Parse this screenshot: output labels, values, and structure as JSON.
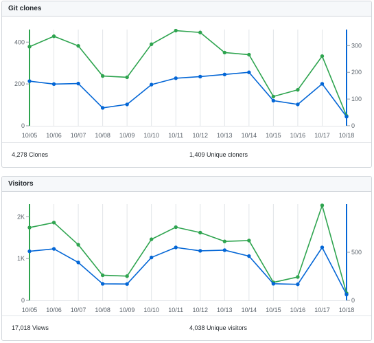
{
  "panels": {
    "clones": {
      "title": "Git clones",
      "total_label": "4,278 Clones",
      "unique_label": "1,409 Unique cloners"
    },
    "visitors": {
      "title": "Visitors",
      "total_label": "17,018 Views",
      "unique_label": "4,038 Unique visitors"
    }
  },
  "colors": {
    "total": "#2ea44f",
    "unique": "#0366d6",
    "grid": "#e1e4e8"
  },
  "chart_data": [
    {
      "type": "line",
      "title": "Git clones",
      "categories": [
        "10/05",
        "10/06",
        "10/07",
        "10/08",
        "10/09",
        "10/10",
        "10/11",
        "10/12",
        "10/13",
        "10/14",
        "10/15",
        "10/16",
        "10/17",
        "10/18"
      ],
      "left_axis": {
        "ticks": [
          0,
          200,
          400
        ],
        "tick_labels": [
          "0",
          "200",
          "400"
        ],
        "range": [
          0,
          460
        ]
      },
      "right_axis": {
        "ticks": [
          0,
          100,
          200,
          300
        ],
        "tick_labels": [
          "0",
          "100",
          "200",
          "300"
        ],
        "range": [
          0,
          360
        ]
      },
      "series": [
        {
          "name": "Clones",
          "axis": "left",
          "color": "#2ea44f",
          "values": [
            378,
            428,
            382,
            238,
            232,
            390,
            455,
            446,
            350,
            340,
            140,
            172,
            333,
            47
          ]
        },
        {
          "name": "Unique cloners",
          "axis": "right",
          "color": "#0366d6",
          "values": [
            167,
            156,
            158,
            67,
            80,
            154,
            178,
            184,
            192,
            200,
            94,
            80,
            157,
            34
          ]
        }
      ],
      "grid": true
    },
    {
      "type": "line",
      "title": "Visitors",
      "categories": [
        "10/05",
        "10/06",
        "10/07",
        "10/08",
        "10/09",
        "10/10",
        "10/11",
        "10/12",
        "10/13",
        "10/14",
        "10/15",
        "10/16",
        "10/17",
        "10/18"
      ],
      "left_axis": {
        "ticks": [
          0,
          1000,
          2000
        ],
        "tick_labels": [
          "0",
          "1K",
          "2K"
        ],
        "range": [
          0,
          2300
        ]
      },
      "right_axis": {
        "ticks": [
          0,
          500
        ],
        "tick_labels": [
          "0",
          "500"
        ],
        "range": [
          0,
          1000
        ]
      },
      "series": [
        {
          "name": "Views",
          "axis": "left",
          "color": "#2ea44f",
          "values": [
            1740,
            1860,
            1330,
            600,
            580,
            1460,
            1750,
            1620,
            1410,
            1430,
            430,
            560,
            2270,
            170
          ]
        },
        {
          "name": "Unique visitors",
          "axis": "right",
          "color": "#0366d6",
          "values": [
            510,
            535,
            394,
            172,
            170,
            446,
            550,
            515,
            522,
            460,
            173,
            167,
            550,
            61
          ]
        }
      ],
      "grid": true
    }
  ]
}
